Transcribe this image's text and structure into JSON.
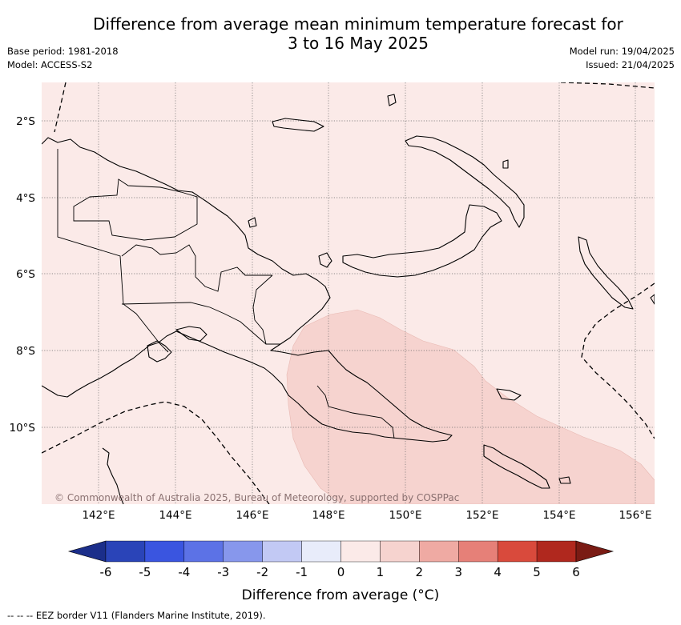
{
  "title_line1": "Difference from average mean minimum temperature forecast for",
  "title_line2": "3 to 16 May 2025",
  "base_period": "Base period: 1981-2018",
  "model": "Model: ACCESS-S2",
  "model_run": "Model run: 19/04/2025",
  "issued": "Issued: 21/04/2025",
  "credit": "© Commonwealth of Australia 2025, Bureau of Meteorology, supported by COSPPac",
  "footnote": "-- -- -- EEZ border V11 (Flanders Marine Institute, 2019).",
  "lat_labels": [
    "2°S",
    "4°S",
    "6°S",
    "8°S",
    "10°S"
  ],
  "lon_labels": [
    "142°E",
    "144°E",
    "146°E",
    "148°E",
    "150°E",
    "152°E",
    "154°E",
    "156°E"
  ],
  "colorbar": {
    "title": "Difference from average (°C)",
    "ticks": [
      "-6",
      "-5",
      "-4",
      "-3",
      "-2",
      "-1",
      "0",
      "1",
      "2",
      "3",
      "4",
      "5",
      "6"
    ],
    "colors": [
      "#1b2e8a",
      "#2a44b8",
      "#3a55e0",
      "#5c72e6",
      "#8797ec",
      "#c2c9f4",
      "#e8ecfa",
      "#fbeae8",
      "#f6d3cf",
      "#efaaa3",
      "#e68078",
      "#d94a3c",
      "#b0281e",
      "#7a1b14"
    ]
  },
  "legend_levels": {
    "background": "0 to 1",
    "highlight": "1 to 2"
  }
}
